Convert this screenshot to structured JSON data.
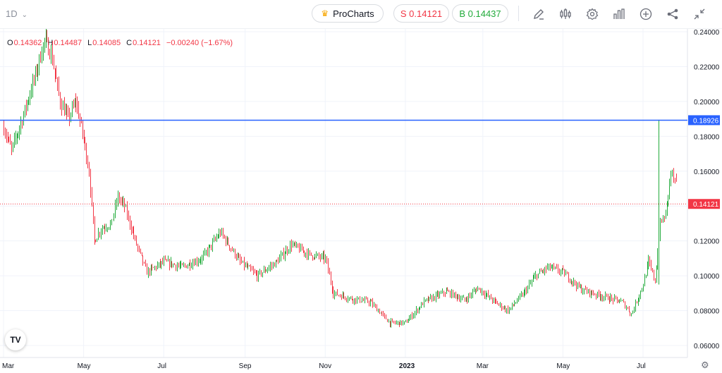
{
  "toolbar": {
    "interval": "1D",
    "pro_label": "ProCharts",
    "sell_label": "S 0.14121",
    "buy_label": "B 0.14437",
    "icons": [
      "draw-icon",
      "indicators-icon",
      "settings-icon",
      "chart-type-icon",
      "add-icon",
      "share-icon",
      "collapse-icon"
    ]
  },
  "ohlc": {
    "o_key": "O",
    "o": "0.14362",
    "h_key": "H",
    "h": "0.14487",
    "l_key": "L",
    "l": "0.14085",
    "c_key": "C",
    "c": "0.14121",
    "change": "−0.00240 (−1.67%)"
  },
  "colors": {
    "up": "#22ab3b",
    "down": "#f23645",
    "hline": "#2962ff",
    "grid": "#f0f3fa",
    "axis_text": "#131722"
  },
  "chart_data": {
    "type": "ohlc",
    "x_labels": [
      "Mar",
      "May",
      "Jul",
      "Sep",
      "Nov",
      "2023",
      "Mar",
      "May",
      "Jul"
    ],
    "y_ticks": [
      0.06,
      0.08,
      0.1,
      0.12,
      0.14,
      0.16,
      0.18,
      0.2,
      0.22,
      0.24
    ],
    "y_tick_labels": [
      "0.06000",
      "0.08000",
      "0.10000",
      "0.12000",
      "0.14000",
      "0.16000",
      "0.18000",
      "0.20000",
      "0.22000",
      "0.24000"
    ],
    "ylim": [
      0.055,
      0.255
    ],
    "horizontal_line": {
      "value": 0.18926,
      "label": "0.18926"
    },
    "last_price": {
      "value": 0.14121,
      "label": "0.14121"
    },
    "anchors": [
      {
        "date": "2022-03-01",
        "price": 0.185
      },
      {
        "date": "2022-03-07",
        "price": 0.172
      },
      {
        "date": "2022-03-15",
        "price": 0.19
      },
      {
        "date": "2022-03-25",
        "price": 0.215
      },
      {
        "date": "2022-04-01",
        "price": 0.235
      },
      {
        "date": "2022-04-06",
        "price": 0.228
      },
      {
        "date": "2022-04-13",
        "price": 0.2
      },
      {
        "date": "2022-04-19",
        "price": 0.19
      },
      {
        "date": "2022-04-25",
        "price": 0.2
      },
      {
        "date": "2022-05-01",
        "price": 0.178
      },
      {
        "date": "2022-05-05",
        "price": 0.16
      },
      {
        "date": "2022-05-09",
        "price": 0.12
      },
      {
        "date": "2022-05-14",
        "price": 0.127
      },
      {
        "date": "2022-05-22",
        "price": 0.13
      },
      {
        "date": "2022-05-27",
        "price": 0.145
      },
      {
        "date": "2022-06-01",
        "price": 0.14
      },
      {
        "date": "2022-06-10",
        "price": 0.118
      },
      {
        "date": "2022-06-18",
        "price": 0.102
      },
      {
        "date": "2022-07-01",
        "price": 0.108
      },
      {
        "date": "2022-07-15",
        "price": 0.105
      },
      {
        "date": "2022-07-30",
        "price": 0.11
      },
      {
        "date": "2022-08-13",
        "price": 0.125
      },
      {
        "date": "2022-08-28",
        "price": 0.108
      },
      {
        "date": "2022-09-10",
        "price": 0.1
      },
      {
        "date": "2022-09-25",
        "price": 0.108
      },
      {
        "date": "2022-10-06",
        "price": 0.118
      },
      {
        "date": "2022-10-20",
        "price": 0.112
      },
      {
        "date": "2022-11-01",
        "price": 0.11
      },
      {
        "date": "2022-11-07",
        "price": 0.09
      },
      {
        "date": "2022-11-20",
        "price": 0.087
      },
      {
        "date": "2022-12-05",
        "price": 0.085
      },
      {
        "date": "2022-12-20",
        "price": 0.073
      },
      {
        "date": "2023-01-01",
        "price": 0.073
      },
      {
        "date": "2023-01-15",
        "price": 0.085
      },
      {
        "date": "2023-02-01",
        "price": 0.091
      },
      {
        "date": "2023-02-15",
        "price": 0.086
      },
      {
        "date": "2023-02-25",
        "price": 0.093
      },
      {
        "date": "2023-03-10",
        "price": 0.085
      },
      {
        "date": "2023-03-20",
        "price": 0.08
      },
      {
        "date": "2023-04-01",
        "price": 0.09
      },
      {
        "date": "2023-04-10",
        "price": 0.1
      },
      {
        "date": "2023-04-20",
        "price": 0.105
      },
      {
        "date": "2023-05-01",
        "price": 0.102
      },
      {
        "date": "2023-05-15",
        "price": 0.092
      },
      {
        "date": "2023-06-01",
        "price": 0.088
      },
      {
        "date": "2023-06-15",
        "price": 0.085
      },
      {
        "date": "2023-06-22",
        "price": 0.078
      },
      {
        "date": "2023-07-01",
        "price": 0.095
      },
      {
        "date": "2023-07-05",
        "price": 0.108
      },
      {
        "date": "2023-07-10",
        "price": 0.097
      },
      {
        "date": "2023-07-14",
        "price": 0.13
      },
      {
        "date": "2023-07-18",
        "price": 0.135
      },
      {
        "date": "2023-07-22",
        "price": 0.16
      },
      {
        "date": "2023-07-27",
        "price": 0.15
      },
      {
        "date": "2023-07-31",
        "price": 0.141
      }
    ]
  }
}
